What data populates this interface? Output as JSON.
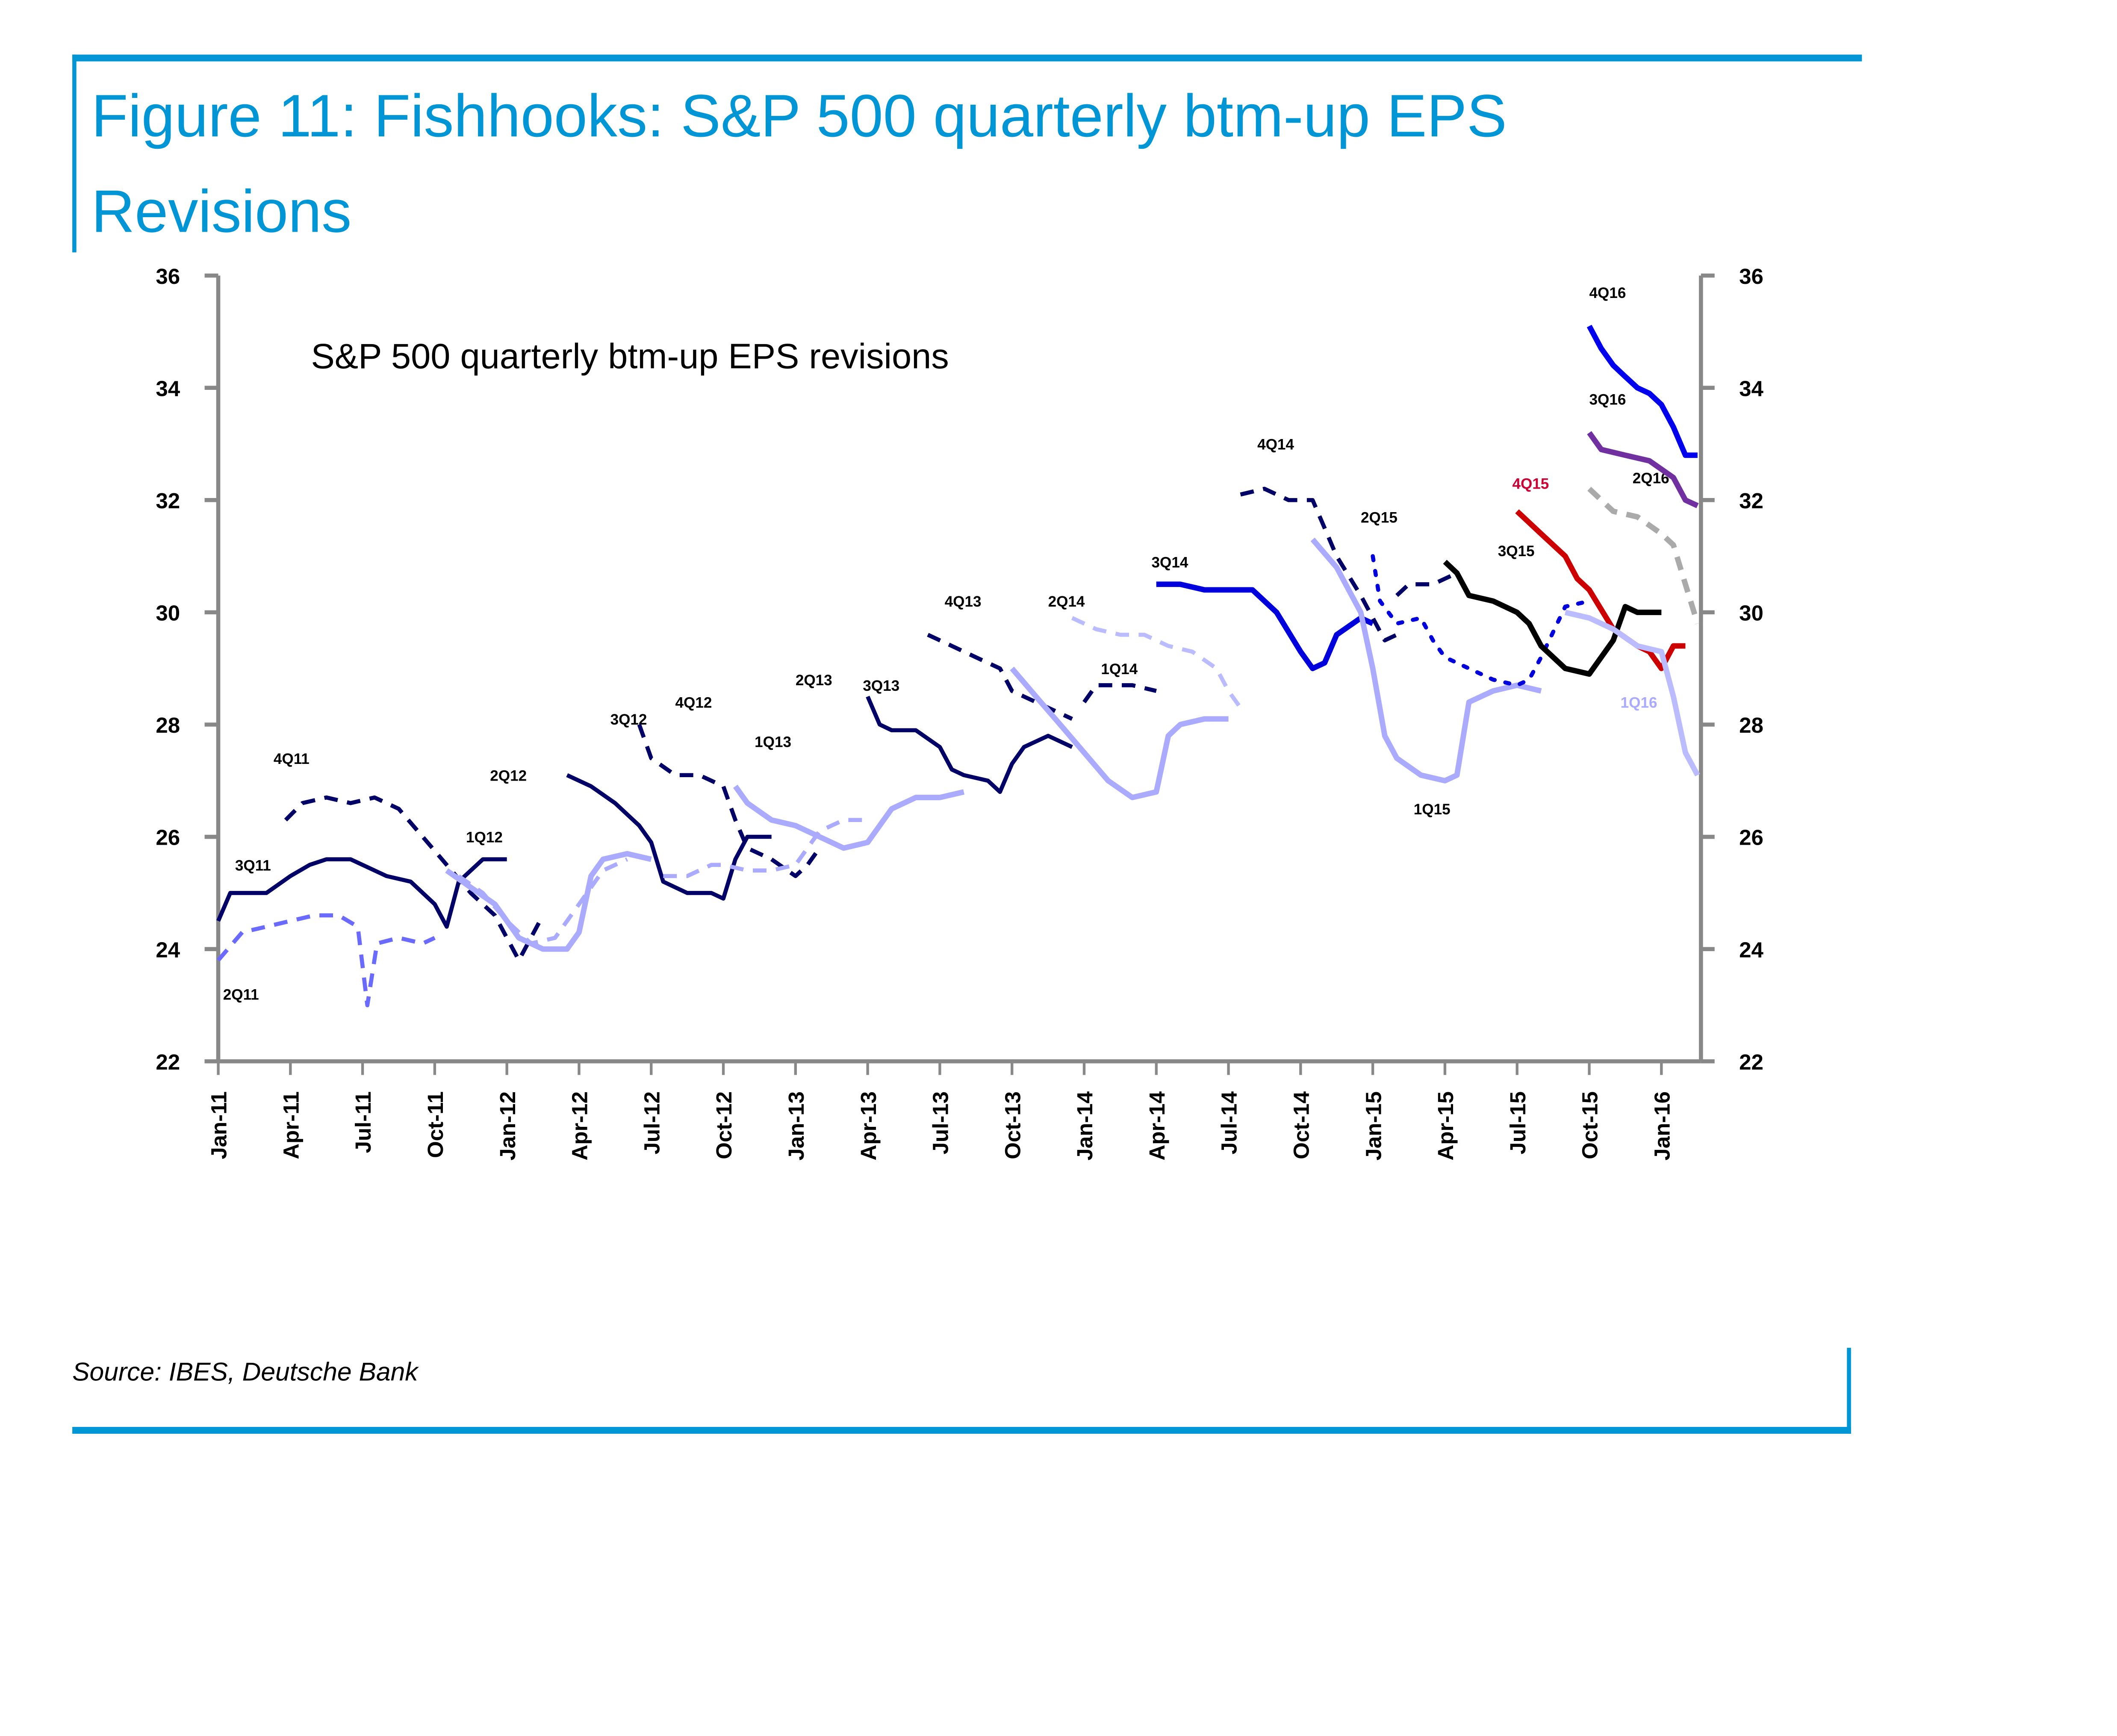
{
  "figure": {
    "title_line1": "Figure 11: Fishhooks: S&P 500 quarterly btm-up EPS",
    "title_line2": "Revisions",
    "source": "Source: IBES, Deutsche Bank",
    "accent_color": "#0096d6"
  },
  "chart_data": {
    "type": "line",
    "title": "S&P 500 quarterly btm-up EPS revisions",
    "xlabel": "",
    "ylabel": "",
    "ylim": [
      22,
      36
    ],
    "yticks": [
      22,
      24,
      26,
      28,
      30,
      32,
      34,
      36
    ],
    "ytick_labels": [
      "22",
      "24",
      "26",
      "28",
      "30",
      "32",
      "34",
      "36"
    ],
    "y_axis_both_sides": true,
    "x_unit": "months since Jan-11",
    "xlim": [
      0,
      62
    ],
    "xticks": [
      0,
      3,
      6,
      9,
      12,
      15,
      18,
      21,
      24,
      27,
      30,
      33,
      36,
      39,
      42,
      45,
      48,
      51,
      54,
      57,
      60
    ],
    "xtick_labels": [
      "Jan-11",
      "Apr-11",
      "Jul-11",
      "Oct-11",
      "Jan-12",
      "Apr-12",
      "Jul-12",
      "Oct-12",
      "Jan-13",
      "Apr-13",
      "Jul-13",
      "Oct-13",
      "Jan-14",
      "Apr-14",
      "Jul-14",
      "Oct-14",
      "Jan-15",
      "Apr-15",
      "Jul-15",
      "Oct-15",
      "Jan-16"
    ],
    "grid": false,
    "legend": "inline-labels",
    "series": [
      {
        "name": "2Q11",
        "color": "#6a6aff",
        "style": "dashed",
        "width": 3,
        "x": [
          0,
          1,
          2,
          3,
          4,
          5,
          5.8,
          6.2,
          6.6,
          7.5,
          8.5,
          9
        ],
        "y": [
          23.8,
          24.3,
          24.4,
          24.5,
          24.6,
          24.6,
          24.4,
          23.0,
          24.1,
          24.2,
          24.1,
          24.2
        ],
        "label_x": 0.2,
        "label_y": 23.1
      },
      {
        "name": "3Q11",
        "color": "#000066",
        "style": "solid",
        "width": 3,
        "x": [
          0,
          0.5,
          2,
          3,
          3.8,
          4.5,
          5.5,
          7,
          8,
          9,
          9.5,
          10,
          11,
          12
        ],
        "y": [
          24.5,
          25.0,
          25.0,
          25.3,
          25.5,
          25.6,
          25.6,
          25.3,
          25.2,
          24.8,
          24.4,
          25.2,
          25.6,
          25.6
        ],
        "label_x": 0.7,
        "label_y": 25.4
      },
      {
        "name": "4Q11",
        "color": "#000066",
        "style": "dashed",
        "width": 3,
        "x": [
          2.8,
          3.5,
          4.5,
          5.5,
          6.5,
          7.5,
          8.5,
          9.5,
          10.5,
          11.5,
          12,
          12.5,
          13.5
        ],
        "y": [
          26.3,
          26.6,
          26.7,
          26.6,
          26.7,
          26.5,
          26.0,
          25.5,
          25.0,
          24.6,
          24.2,
          23.8,
          24.6
        ],
        "label_x": 2.3,
        "label_y": 27.3
      },
      {
        "name": "1Q12",
        "color": "#aaaaff",
        "style": "dashed",
        "width": 3,
        "x": [
          10,
          11,
          12,
          13,
          14,
          15,
          16,
          17
        ],
        "y": [
          25.3,
          25.0,
          24.5,
          24.1,
          24.2,
          24.8,
          25.4,
          25.6
        ],
        "label_x": 10.3,
        "label_y": 25.9
      },
      {
        "name": "2Q12",
        "color": "#aaaaff",
        "style": "solid",
        "width": 4,
        "x": [
          9.5,
          10.5,
          11.5,
          12.5,
          13.5,
          14.5,
          15,
          15.5,
          16,
          17,
          18
        ],
        "y": [
          25.4,
          25.1,
          24.8,
          24.2,
          24.0,
          24.0,
          24.3,
          25.3,
          25.6,
          25.7,
          25.6
        ],
        "label_x": 11.3,
        "label_y": 27.0
      },
      {
        "name": "3Q12",
        "color": "#000066",
        "style": "solid",
        "width": 3,
        "x": [
          14.5,
          15.5,
          16.5,
          17.5,
          18,
          18.5,
          19.5,
          20.5,
          21,
          21.5,
          22,
          23
        ],
        "y": [
          27.1,
          26.9,
          26.6,
          26.2,
          25.9,
          25.2,
          25.0,
          25.0,
          24.9,
          25.6,
          26.0,
          26.0
        ],
        "label_x": 16.3,
        "label_y": 28.0
      },
      {
        "name": "4Q12",
        "color": "#000066",
        "style": "dashed",
        "width": 3,
        "x": [
          17.5,
          18,
          19,
          20,
          21,
          21.5,
          22,
          23,
          24,
          24.5,
          25
        ],
        "y": [
          28.0,
          27.4,
          27.1,
          27.1,
          26.9,
          26.3,
          25.8,
          25.6,
          25.3,
          25.5,
          25.8
        ],
        "label_x": 19.0,
        "label_y": 28.3
      },
      {
        "name": "1Q13",
        "color": "#aaaaff",
        "style": "dashed",
        "width": 3,
        "x": [
          18.5,
          19.5,
          20.5,
          21,
          22,
          23,
          24,
          25,
          26,
          27
        ],
        "y": [
          25.3,
          25.3,
          25.5,
          25.5,
          25.4,
          25.4,
          25.5,
          26.1,
          26.3,
          26.3
        ],
        "label_x": 22.3,
        "label_y": 27.6
      },
      {
        "name": "2Q13",
        "color": "#aaaaff",
        "style": "solid",
        "width": 4,
        "x": [
          21.5,
          22,
          23,
          24,
          25,
          26,
          27,
          28,
          29,
          30,
          31
        ],
        "y": [
          26.9,
          26.6,
          26.3,
          26.2,
          26.0,
          25.8,
          25.9,
          26.5,
          26.7,
          26.7,
          26.8
        ],
        "label_x": 24.0,
        "label_y": 28.7
      },
      {
        "name": "3Q13",
        "color": "#000066",
        "style": "solid",
        "width": 3,
        "x": [
          27,
          27.5,
          28,
          29,
          30,
          30.5,
          31,
          32,
          32.5,
          33,
          33.5,
          34.5,
          35.5
        ],
        "y": [
          28.5,
          28.0,
          27.9,
          27.9,
          27.6,
          27.2,
          27.1,
          27.0,
          26.8,
          27.3,
          27.6,
          27.8,
          27.6
        ],
        "label_x": 26.8,
        "label_y": 28.6
      },
      {
        "name": "4Q13",
        "color": "#000066",
        "style": "dashed",
        "width": 3,
        "x": [
          29.5,
          30.5,
          31.5,
          32.5,
          33,
          33.5,
          34.5,
          35.5
        ],
        "y": [
          29.6,
          29.4,
          29.2,
          29.0,
          28.6,
          28.5,
          28.3,
          28.1
        ],
        "label_x": 30.2,
        "label_y": 30.1
      },
      {
        "name": "1Q14",
        "color": "#000066",
        "style": "dashed",
        "width": 3,
        "x": [
          36,
          36.5,
          37,
          38,
          39
        ],
        "y": [
          28.4,
          28.7,
          28.7,
          28.7,
          28.6
        ],
        "label_x": 36.7,
        "label_y": 28.9
      },
      {
        "name": "2Q14",
        "color": "#bbbbff",
        "style": "dashed",
        "width": 3,
        "x": [
          35.5,
          36.5,
          37.5,
          38.5,
          39.5,
          40.5,
          41.5,
          42,
          42.5
        ],
        "y": [
          29.9,
          29.7,
          29.6,
          29.6,
          29.4,
          29.3,
          29.0,
          28.6,
          28.3
        ],
        "label_x": 34.5,
        "label_y": 30.1
      },
      {
        "name": "1Q13b",
        "color": "#aaaaff",
        "style": "solid",
        "width": 4,
        "hidden_label": true,
        "x": [
          33,
          34,
          35,
          36,
          37,
          38,
          39,
          39.5,
          40,
          41,
          42
        ],
        "y": [
          29.0,
          28.5,
          28.0,
          27.5,
          27.0,
          26.7,
          26.8,
          27.8,
          28.0,
          28.1,
          28.1
        ],
        "label_x": 0,
        "label_y": 0
      },
      {
        "name": "3Q14",
        "color": "#0000dd",
        "style": "solid",
        "width": 4,
        "x": [
          39,
          40,
          41,
          42,
          43,
          44,
          45,
          45.5,
          46,
          46.5,
          47.5,
          48
        ],
        "y": [
          30.5,
          30.5,
          30.4,
          30.4,
          30.4,
          30.0,
          29.3,
          29.0,
          29.1,
          29.6,
          29.9,
          29.8
        ],
        "label_x": 38.8,
        "label_y": 30.8
      },
      {
        "name": "4Q14",
        "color": "#000066",
        "style": "dashed",
        "width": 3,
        "x": [
          42.5,
          43.5,
          44.5,
          45.5,
          46,
          46.5,
          47.5,
          48.5,
          49
        ],
        "y": [
          32.1,
          32.2,
          32.0,
          32.0,
          31.5,
          31.0,
          30.3,
          29.5,
          29.6
        ],
        "label_x": 43.2,
        "label_y": 32.9
      },
      {
        "name": "1Q15",
        "color": "#aaaaff",
        "style": "solid",
        "width": 4,
        "x": [
          45.5,
          46.5,
          47.5,
          48,
          48.5,
          49,
          50,
          51,
          51.5,
          52,
          53,
          54,
          55
        ],
        "y": [
          31.3,
          30.8,
          30.0,
          29.0,
          27.8,
          27.4,
          27.1,
          27.0,
          27.1,
          28.4,
          28.6,
          28.7,
          28.6
        ],
        "label_x": 49.7,
        "label_y": 26.4
      },
      {
        "name": "2Q15",
        "color": "#0000dd",
        "style": "dotted",
        "width": 3,
        "x": [
          48,
          48.3,
          49,
          50,
          50.5,
          51,
          52,
          53,
          54,
          54.5,
          55,
          56,
          57
        ],
        "y": [
          31.0,
          30.2,
          29.8,
          29.9,
          29.5,
          29.2,
          29.0,
          28.8,
          28.7,
          28.8,
          29.2,
          30.1,
          30.2
        ],
        "label_x": 47.5,
        "label_y": 31.6
      },
      {
        "name": "2Q15b",
        "color": "#000066",
        "style": "dashed",
        "width": 3,
        "hidden_label": true,
        "x": [
          49,
          49.5,
          50.5,
          51.5
        ],
        "y": [
          30.3,
          30.5,
          30.5,
          30.7
        ],
        "label_x": 0,
        "label_y": 0
      },
      {
        "name": "3Q15",
        "color": "#000000",
        "style": "solid",
        "width": 4,
        "x": [
          51,
          51.5,
          52,
          53,
          54,
          54.5,
          55,
          56,
          57,
          58,
          58.5,
          59,
          60
        ],
        "y": [
          30.9,
          30.7,
          30.3,
          30.2,
          30.0,
          29.8,
          29.4,
          29.0,
          28.9,
          29.5,
          30.1,
          30.0,
          30.0
        ],
        "label_x": 53.2,
        "label_y": 31.0
      },
      {
        "name": "4Q15",
        "color": "#cc0000",
        "style": "solid",
        "width": 4,
        "x": [
          54,
          55,
          56,
          56.5,
          57,
          58,
          59,
          59.5,
          60,
          60.5,
          61
        ],
        "y": [
          31.8,
          31.4,
          31.0,
          30.6,
          30.4,
          29.7,
          29.4,
          29.3,
          29.0,
          29.4,
          29.4
        ],
        "label_x": 53.8,
        "label_y": 32.2
      },
      {
        "name": "1Q16",
        "color": "#bbbbff",
        "style": "solid",
        "width": 4,
        "x": [
          56,
          57,
          58,
          59,
          60,
          60.5,
          61,
          61.5
        ],
        "y": [
          30.0,
          29.9,
          29.7,
          29.4,
          29.3,
          28.5,
          27.5,
          27.1
        ],
        "label_x": 58.3,
        "label_y": 28.3
      },
      {
        "name": "2Q16",
        "color": "#aaaaaa",
        "style": "dashed",
        "width": 4,
        "x": [
          57,
          58,
          59,
          60,
          60.5,
          61,
          61.5
        ],
        "y": [
          32.2,
          31.8,
          31.7,
          31.4,
          31.2,
          30.5,
          29.8
        ],
        "label_x": 58.8,
        "label_y": 32.3
      },
      {
        "name": "3Q16",
        "color": "#7030a0",
        "style": "solid",
        "width": 4,
        "x": [
          57,
          57.5,
          58.5,
          59.5,
          60.5,
          61,
          61.5
        ],
        "y": [
          33.2,
          32.9,
          32.8,
          32.7,
          32.4,
          32.0,
          31.9
        ],
        "label_x": 57.0,
        "label_y": 33.7
      },
      {
        "name": "4Q16",
        "color": "#0000ee",
        "style": "solid",
        "width": 4,
        "x": [
          57,
          57.5,
          58,
          58.5,
          59,
          59.5,
          60,
          60.5,
          61,
          61.5
        ],
        "y": [
          35.1,
          34.7,
          34.4,
          34.2,
          34.0,
          33.9,
          33.7,
          33.3,
          32.8,
          32.8
        ],
        "label_x": 57.0,
        "label_y": 35.6
      }
    ],
    "label_colors": {
      "4Q15": "#cc0033",
      "1Q16": "#aaaaff",
      "default": "#000000"
    }
  }
}
